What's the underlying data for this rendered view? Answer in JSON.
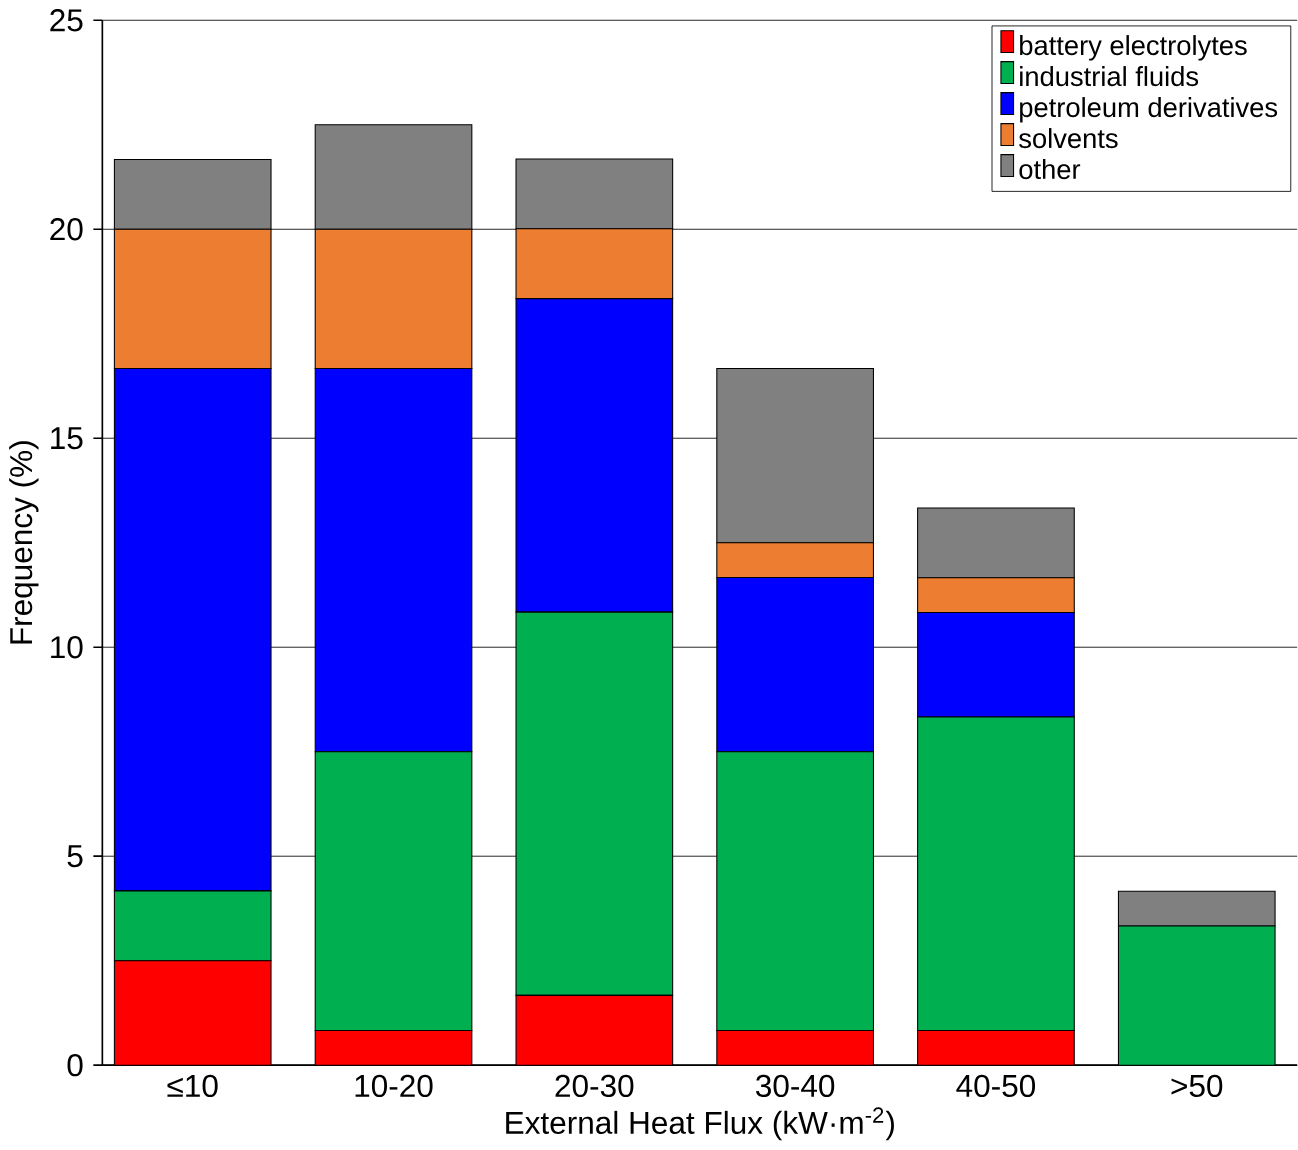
{
  "chart_data": {
    "type": "bar",
    "stacked": true,
    "xlabel": "External Heat Flux (kW·m$^{-2}$)",
    "ylabel": "Frequency (%)",
    "categories": [
      "≤10",
      "10-20",
      "20-30",
      "30-40",
      "40-50",
      ">50"
    ],
    "series": [
      {
        "name": "battery electrolytes",
        "color": "#ff0000",
        "values": [
          2.5,
          0.83,
          1.67,
          0.83,
          0.83,
          0
        ]
      },
      {
        "name": "industrial fluids",
        "color": "#00b050",
        "values": [
          1.67,
          6.67,
          9.17,
          6.67,
          7.5,
          3.33
        ]
      },
      {
        "name": "petroleum derivatives",
        "color": "#0000ff",
        "values": [
          12.5,
          9.17,
          7.5,
          4.17,
          2.5,
          0
        ]
      },
      {
        "name": "solvents",
        "color": "#ed7d31",
        "values": [
          3.33,
          3.33,
          1.67,
          0.83,
          0.83,
          0
        ]
      },
      {
        "name": "other",
        "color": "#808080",
        "values": [
          1.67,
          2.5,
          1.67,
          4.17,
          1.67,
          0.83
        ]
      }
    ],
    "ylim": [
      0,
      25
    ],
    "yticks": [
      0,
      5,
      10,
      15,
      20,
      25
    ],
    "grid": "y",
    "legend": "top right"
  }
}
